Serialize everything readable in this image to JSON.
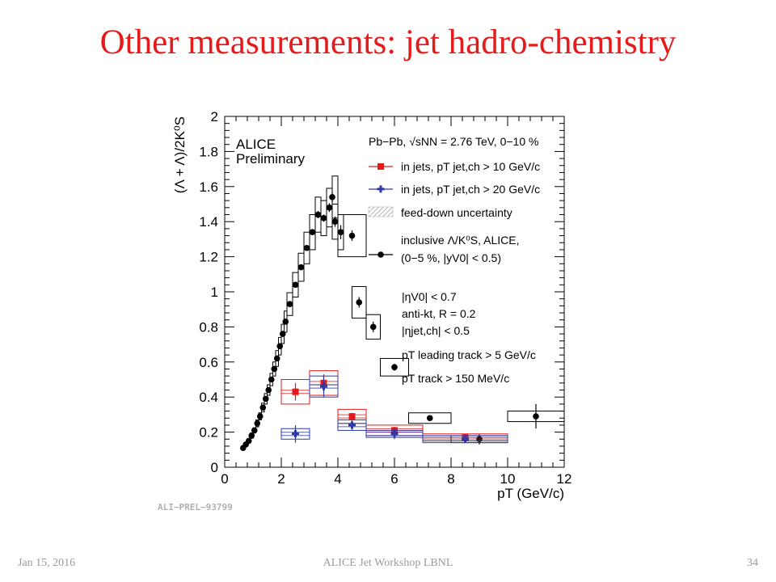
{
  "slide": {
    "title": "Other measurements: jet hadro-chemistry",
    "footer_left": "Jan 15, 2016",
    "footer_center": "ALICE Jet Workshop LBNL",
    "footer_right": "34"
  },
  "chart_data": {
    "type": "scatter",
    "ylabel": "(Λ + Λ)/2K⁰S",
    "xlabel": "pT (GeV/c)",
    "xlim": [
      0,
      12
    ],
    "ylim": [
      0,
      2
    ],
    "xticks": [
      "0",
      "2",
      "4",
      "6",
      "8",
      "10",
      "12"
    ],
    "yticks": [
      "0",
      "0.2",
      "0.4",
      "0.6",
      "0.8",
      "1",
      "1.2",
      "1.4",
      "1.6",
      "1.8",
      "2"
    ],
    "grid": false,
    "watermark": "ALI−PREL−93799",
    "alice_label": [
      "ALICE",
      "Preliminary"
    ],
    "legend": [
      {
        "kind": "text",
        "text": "Pb−Pb, √sNN = 2.76 TeV, 0−10 %"
      },
      {
        "kind": "red",
        "text": "in jets, pT jet,ch > 10 GeV/c"
      },
      {
        "kind": "blue",
        "text": "in jets, pT jet,ch > 20 GeV/c"
      },
      {
        "kind": "band",
        "text": "feed-down uncertainty"
      },
      {
        "kind": "black",
        "text": "inclusive Λ/K⁰S, ALICE,"
      },
      {
        "kind": "text2",
        "text": "(0−5 %, |yV0| < 0.5)"
      }
    ],
    "cuts": [
      "|ηV0| < 0.7",
      "anti-kt, R = 0.2",
      "|ηjet,ch| < 0.5",
      "pT leading track > 5 GeV/c",
      "pT track > 150 MeV/c"
    ],
    "colors": {
      "red": "#e31a1c",
      "blue": "#2b3aa7",
      "black": "#000000"
    },
    "series": [
      {
        "name": "in jets, pT jet,ch > 10 GeV/c",
        "color": "red",
        "marker": "square",
        "points": [
          {
            "x": 2.5,
            "y": 0.43,
            "xlo": 2.0,
            "xhi": 3.0,
            "sys": 0.07,
            "err": 0.05
          },
          {
            "x": 3.5,
            "y": 0.48,
            "xlo": 3.0,
            "xhi": 4.0,
            "sys": 0.07,
            "err": 0.05
          },
          {
            "x": 4.5,
            "y": 0.29,
            "xlo": 4.0,
            "xhi": 5.0,
            "sys": 0.04,
            "err": 0.02
          },
          {
            "x": 6.0,
            "y": 0.21,
            "xlo": 5.0,
            "xhi": 7.0,
            "sys": 0.03,
            "err": 0.02
          },
          {
            "x": 8.5,
            "y": 0.17,
            "xlo": 7.0,
            "xhi": 10.0,
            "sys": 0.02,
            "err": 0.02
          }
        ]
      },
      {
        "name": "in jets, pT jet,ch > 20 GeV/c",
        "color": "blue",
        "marker": "cross",
        "points": [
          {
            "x": 2.5,
            "y": 0.19,
            "xlo": 2.0,
            "xhi": 3.0,
            "sys": 0.03,
            "err": 0.05
          },
          {
            "x": 3.5,
            "y": 0.46,
            "xlo": 3.0,
            "xhi": 4.0,
            "sys": 0.06,
            "err": 0.06
          },
          {
            "x": 4.5,
            "y": 0.24,
            "xlo": 4.0,
            "xhi": 5.0,
            "sys": 0.03,
            "err": 0.03
          },
          {
            "x": 6.0,
            "y": 0.19,
            "xlo": 5.0,
            "xhi": 7.0,
            "sys": 0.02,
            "err": 0.03
          },
          {
            "x": 8.5,
            "y": 0.16,
            "xlo": 7.0,
            "xhi": 10.0,
            "sys": 0.02,
            "err": 0.02
          }
        ]
      },
      {
        "name": "inclusive Λ/K⁰S, ALICE,",
        "color": "black",
        "marker": "circle",
        "points": [
          {
            "x": 0.65,
            "y": 0.11,
            "xlo": 0.6,
            "xhi": 0.7,
            "sys": 0.01,
            "err": 0.005
          },
          {
            "x": 0.75,
            "y": 0.13,
            "xlo": 0.7,
            "xhi": 0.8,
            "sys": 0.01,
            "err": 0.005
          },
          {
            "x": 0.85,
            "y": 0.15,
            "xlo": 0.8,
            "xhi": 0.9,
            "sys": 0.01,
            "err": 0.005
          },
          {
            "x": 0.95,
            "y": 0.18,
            "xlo": 0.9,
            "xhi": 1.0,
            "sys": 0.015,
            "err": 0.005
          },
          {
            "x": 1.05,
            "y": 0.21,
            "xlo": 1.0,
            "xhi": 1.1,
            "sys": 0.015,
            "err": 0.005
          },
          {
            "x": 1.15,
            "y": 0.25,
            "xlo": 1.1,
            "xhi": 1.2,
            "sys": 0.02,
            "err": 0.005
          },
          {
            "x": 1.25,
            "y": 0.29,
            "xlo": 1.2,
            "xhi": 1.3,
            "sys": 0.02,
            "err": 0.005
          },
          {
            "x": 1.35,
            "y": 0.34,
            "xlo": 1.3,
            "xhi": 1.4,
            "sys": 0.025,
            "err": 0.005
          },
          {
            "x": 1.45,
            "y": 0.39,
            "xlo": 1.4,
            "xhi": 1.5,
            "sys": 0.03,
            "err": 0.005
          },
          {
            "x": 1.55,
            "y": 0.44,
            "xlo": 1.5,
            "xhi": 1.6,
            "sys": 0.03,
            "err": 0.005
          },
          {
            "x": 1.65,
            "y": 0.5,
            "xlo": 1.6,
            "xhi": 1.7,
            "sys": 0.035,
            "err": 0.005
          },
          {
            "x": 1.75,
            "y": 0.56,
            "xlo": 1.7,
            "xhi": 1.8,
            "sys": 0.04,
            "err": 0.005
          },
          {
            "x": 1.85,
            "y": 0.62,
            "xlo": 1.8,
            "xhi": 1.9,
            "sys": 0.045,
            "err": 0.005
          },
          {
            "x": 1.95,
            "y": 0.69,
            "xlo": 1.9,
            "xhi": 2.0,
            "sys": 0.05,
            "err": 0.005
          },
          {
            "x": 2.05,
            "y": 0.76,
            "xlo": 2.0,
            "xhi": 2.1,
            "sys": 0.055,
            "err": 0.005
          },
          {
            "x": 2.15,
            "y": 0.83,
            "xlo": 2.1,
            "xhi": 2.2,
            "sys": 0.06,
            "err": 0.005
          },
          {
            "x": 2.3,
            "y": 0.93,
            "xlo": 2.2,
            "xhi": 2.4,
            "sys": 0.065,
            "err": 0.005
          },
          {
            "x": 2.5,
            "y": 1.04,
            "xlo": 2.4,
            "xhi": 2.6,
            "sys": 0.07,
            "err": 0.008
          },
          {
            "x": 2.7,
            "y": 1.14,
            "xlo": 2.6,
            "xhi": 2.8,
            "sys": 0.08,
            "err": 0.008
          },
          {
            "x": 2.9,
            "y": 1.25,
            "xlo": 2.8,
            "xhi": 3.0,
            "sys": 0.09,
            "err": 0.01
          },
          {
            "x": 3.1,
            "y": 1.34,
            "xlo": 3.0,
            "xhi": 3.2,
            "sys": 0.1,
            "err": 0.015
          },
          {
            "x": 3.3,
            "y": 1.44,
            "xlo": 3.2,
            "xhi": 3.4,
            "sys": 0.1,
            "err": 0.02
          },
          {
            "x": 3.5,
            "y": 1.42,
            "xlo": 3.4,
            "xhi": 3.6,
            "sys": 0.1,
            "err": 0.02
          },
          {
            "x": 3.7,
            "y": 1.48,
            "xlo": 3.6,
            "xhi": 3.8,
            "sys": 0.11,
            "err": 0.025
          },
          {
            "x": 3.8,
            "y": 1.54,
            "xlo": 3.8,
            "xhi": 4.0,
            "sys": 0.12,
            "err": 0.03
          },
          {
            "x": 3.9,
            "y": 1.4,
            "xlo": 3.8,
            "xhi": 4.0,
            "sys": 0.1,
            "err": 0.03
          },
          {
            "x": 4.1,
            "y": 1.34,
            "xlo": 4.0,
            "xhi": 4.2,
            "sys": 0.1,
            "err": 0.04
          },
          {
            "x": 4.5,
            "y": 1.32,
            "xlo": 4.0,
            "xhi": 5.0,
            "sys": 0.12,
            "err": 0.03
          },
          {
            "x": 4.75,
            "y": 0.94,
            "xlo": 4.5,
            "xhi": 5.0,
            "sys": 0.09,
            "err": 0.03
          },
          {
            "x": 5.25,
            "y": 0.8,
            "xlo": 5.0,
            "xhi": 5.5,
            "sys": 0.07,
            "err": 0.03
          },
          {
            "x": 6.0,
            "y": 0.57,
            "xlo": 5.5,
            "xhi": 6.5,
            "sys": 0.05,
            "err": 0.02
          },
          {
            "x": 7.25,
            "y": 0.28,
            "xlo": 6.5,
            "xhi": 8.0,
            "sys": 0.03,
            "err": 0.01
          },
          {
            "x": 9.0,
            "y": 0.16,
            "xlo": 8.0,
            "xhi": 10.0,
            "sys": 0.02,
            "err": 0.03
          },
          {
            "x": 11.0,
            "y": 0.29,
            "xlo": 10.0,
            "xhi": 12.0,
            "sys": 0.03,
            "err": 0.07
          }
        ]
      }
    ]
  }
}
